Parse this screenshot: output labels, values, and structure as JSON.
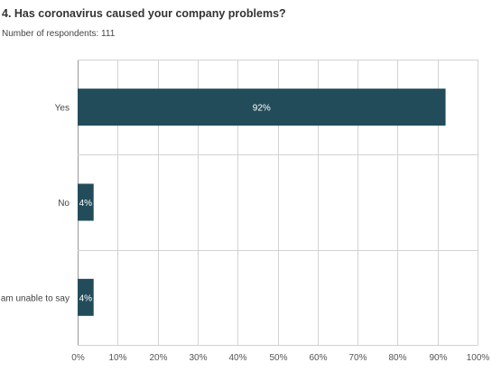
{
  "header": {
    "title": "4. Has coronavirus caused your company problems?",
    "subtitle": "Number of respondents: 111"
  },
  "colors": {
    "bar": "#234c5a",
    "grid": "#d3d3d3",
    "axis": "#999999"
  },
  "chart_data": {
    "type": "bar",
    "orientation": "horizontal",
    "title": "4. Has coronavirus caused your company problems?",
    "subtitle": "Number of respondents: 111",
    "categories": [
      "Yes",
      "No",
      "I am unable to say"
    ],
    "category_labels_visible": [
      "Yes",
      "No",
      "am unable to say"
    ],
    "values": [
      92,
      4,
      4
    ],
    "value_labels": [
      "92%",
      "4%",
      "4%"
    ],
    "xlim": [
      0,
      100
    ],
    "xticks": [
      0,
      10,
      20,
      30,
      40,
      50,
      60,
      70,
      80,
      90,
      100
    ],
    "xtick_labels": [
      "0%",
      "10%",
      "20%",
      "30%",
      "40%",
      "50%",
      "60%",
      "70%",
      "80%",
      "90%",
      "100%"
    ],
    "xlabel": "",
    "ylabel": "",
    "grid": true,
    "legend": "none"
  }
}
